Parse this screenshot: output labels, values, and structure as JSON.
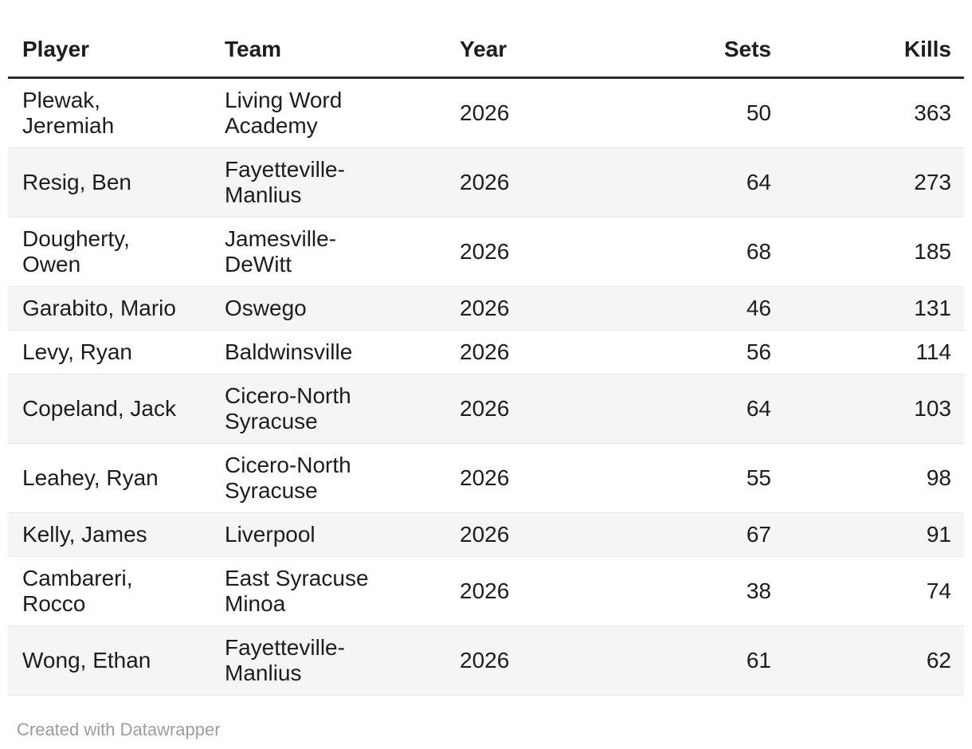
{
  "chart_data": {
    "type": "table",
    "title": "",
    "columns": [
      {
        "key": "player",
        "label": "Player",
        "align": "left"
      },
      {
        "key": "team",
        "label": "Team",
        "align": "left"
      },
      {
        "key": "year",
        "label": "Year",
        "align": "left"
      },
      {
        "key": "sets",
        "label": "Sets",
        "align": "right"
      },
      {
        "key": "kills",
        "label": "Kills",
        "align": "right"
      }
    ],
    "rows": [
      {
        "player": "Plewak, Jeremiah",
        "team": "Living Word Academy",
        "year": 2026,
        "sets": 50,
        "kills": 363
      },
      {
        "player": "Resig, Ben",
        "team": "Fayetteville-Manlius",
        "year": 2026,
        "sets": 64,
        "kills": 273
      },
      {
        "player": "Dougherty, Owen",
        "team": "Jamesville-DeWitt",
        "year": 2026,
        "sets": 68,
        "kills": 185
      },
      {
        "player": "Garabito, Mario",
        "team": "Oswego",
        "year": 2026,
        "sets": 46,
        "kills": 131
      },
      {
        "player": "Levy, Ryan",
        "team": "Baldwinsville",
        "year": 2026,
        "sets": 56,
        "kills": 114
      },
      {
        "player": "Copeland, Jack",
        "team": "Cicero-North Syracuse",
        "year": 2026,
        "sets": 64,
        "kills": 103
      },
      {
        "player": "Leahey, Ryan",
        "team": "Cicero-North Syracuse",
        "year": 2026,
        "sets": 55,
        "kills": 98
      },
      {
        "player": "Kelly, James",
        "team": "Liverpool",
        "year": 2026,
        "sets": 67,
        "kills": 91
      },
      {
        "player": "Cambareri, Rocco",
        "team": "East Syracuse Minoa",
        "year": 2026,
        "sets": 38,
        "kills": 74
      },
      {
        "player": "Wong, Ethan",
        "team": "Fayetteville-Manlius",
        "year": 2026,
        "sets": 61,
        "kills": 62
      }
    ],
    "layout": {
      "zebra_striping": true,
      "grid": "horizontal-row-dividers",
      "header_rule": true
    }
  },
  "footer": {
    "attribution_label": "Created with Datawrapper"
  },
  "colors": {
    "text": "#1d1d1d",
    "header_rule": "#2b2b2b",
    "stripe": "#f5f5f5",
    "row_divider": "#e9e9e9",
    "footer_text": "#9d9d9d",
    "background": "#ffffff"
  }
}
